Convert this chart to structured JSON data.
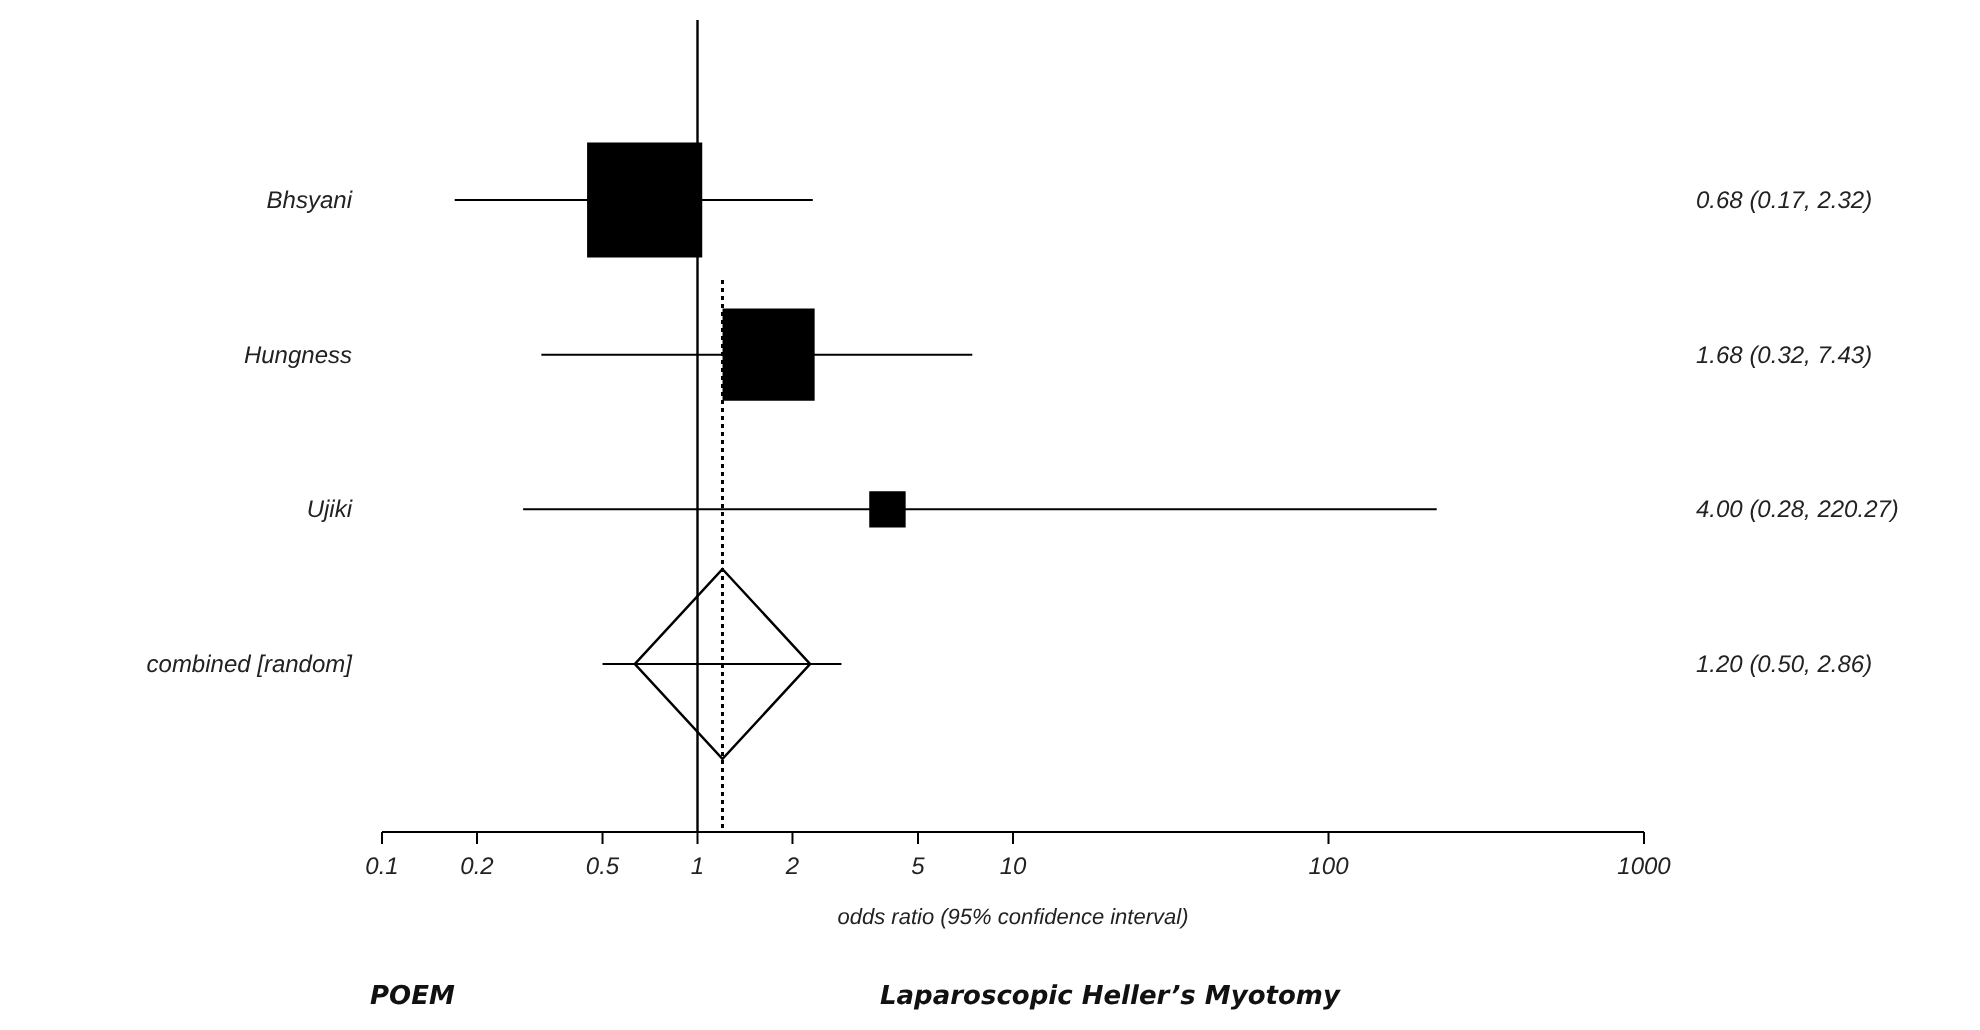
{
  "chart_data": {
    "type": "scatter",
    "orientation": "horizontal",
    "xlabel": "odds ratio (95% confidence interval)",
    "categories": [
      "Bhsyani",
      "Hungness",
      "Ujiki",
      "combined [random]"
    ],
    "series": [
      {
        "type": "bubble",
        "marker": "square",
        "color": "#000000",
        "values": [
          0.68,
          1.68,
          4.0,
          null
        ],
        "errors": [
          [
            0.17,
            2.32
          ],
          [
            0.32,
            7.43
          ],
          [
            0.28,
            220.27
          ],
          null
        ],
        "sizes": [
          1,
          0.64,
          0.1,
          null
        ]
      },
      {
        "marker": "diamond",
        "color": "#000000",
        "values": [
          null,
          null,
          null,
          1.2
        ],
        "errors": [
          null,
          null,
          null,
          [
            0.5,
            2.86
          ]
        ]
      }
    ],
    "xlim": [
      0.1,
      1000
    ],
    "xticks": [
      0.1,
      0.2,
      0.5,
      1,
      2,
      5,
      10,
      100,
      1000
    ],
    "log": "x",
    "grid": false,
    "ref_lines": [
      {
        "axis": "x",
        "value": 1,
        "line_style": "solid",
        "color": "#000000"
      },
      {
        "axis": "x",
        "value": 1.2,
        "line_style": "dotted",
        "color": "#000000"
      }
    ],
    "annotations": [
      "0.68 (0.17, 2.32)",
      "1.68 (0.32, 7.43)",
      "4.00 (0.28, 220.27)",
      "1.20 (0.50, 2.86)",
      "POEM",
      "Laparoscopic Heller’s Myotomy"
    ]
  }
}
